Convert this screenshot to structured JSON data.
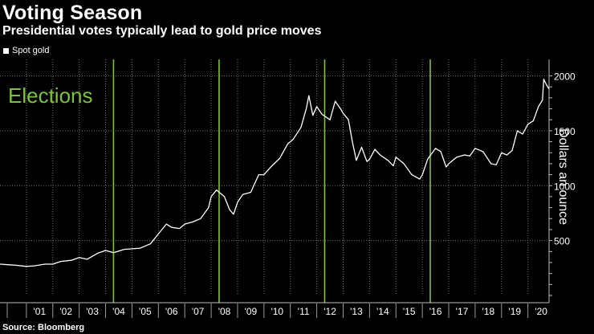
{
  "header": {
    "title": "Voting Season",
    "subtitle": "Presidential votes typically lead to gold price moves"
  },
  "footer": {
    "source": "Source: Bloomberg"
  },
  "colors": {
    "background": "#000000",
    "series": "#ffffff",
    "election": "#7ec242",
    "grid": "#6f6f6f"
  },
  "chart_data": {
    "type": "line",
    "title": "Voting Season",
    "subtitle": "Presidential votes typically lead to gold price moves",
    "ylabel": "Dollars an ounce",
    "ylim": [
      0,
      2150
    ],
    "yticks": [
      500,
      1000,
      1500,
      2000
    ],
    "xlim": [
      2000.0,
      2020.8
    ],
    "xticks": [
      {
        "value": 2001,
        "label": "'01"
      },
      {
        "value": 2002,
        "label": "'02"
      },
      {
        "value": 2003,
        "label": "'03"
      },
      {
        "value": 2004,
        "label": "'04"
      },
      {
        "value": 2005,
        "label": "'05"
      },
      {
        "value": 2006,
        "label": "'06"
      },
      {
        "value": 2007,
        "label": "'07"
      },
      {
        "value": 2008,
        "label": "'08"
      },
      {
        "value": 2009,
        "label": "'09"
      },
      {
        "value": 2010,
        "label": "'10"
      },
      {
        "value": 2011,
        "label": "'11"
      },
      {
        "value": 2012,
        "label": "'12"
      },
      {
        "value": 2013,
        "label": "'13"
      },
      {
        "value": 2014,
        "label": "'14"
      },
      {
        "value": 2015,
        "label": "'15"
      },
      {
        "value": 2016,
        "label": "'16"
      },
      {
        "value": 2017,
        "label": "'17"
      },
      {
        "value": 2018,
        "label": "'18"
      },
      {
        "value": 2019,
        "label": "'19"
      },
      {
        "value": 2020,
        "label": "'20"
      }
    ],
    "annotation": {
      "text": "Elections",
      "election_years": [
        2004.3,
        2008.3,
        2012.3,
        2016.3
      ]
    },
    "series": [
      {
        "name": "Spot gold",
        "points": [
          [
            2000.0,
            285
          ],
          [
            2000.3,
            280
          ],
          [
            2000.6,
            275
          ],
          [
            2001.0,
            265
          ],
          [
            2001.3,
            270
          ],
          [
            2001.7,
            285
          ],
          [
            2002.0,
            285
          ],
          [
            2002.3,
            310
          ],
          [
            2002.7,
            320
          ],
          [
            2003.0,
            345
          ],
          [
            2003.3,
            330
          ],
          [
            2003.7,
            385
          ],
          [
            2004.0,
            410
          ],
          [
            2004.3,
            390
          ],
          [
            2004.7,
            420
          ],
          [
            2005.0,
            425
          ],
          [
            2005.3,
            430
          ],
          [
            2005.7,
            470
          ],
          [
            2006.0,
            560
          ],
          [
            2006.3,
            650
          ],
          [
            2006.5,
            620
          ],
          [
            2006.8,
            610
          ],
          [
            2007.0,
            650
          ],
          [
            2007.3,
            670
          ],
          [
            2007.6,
            700
          ],
          [
            2007.9,
            800
          ],
          [
            2008.0,
            900
          ],
          [
            2008.2,
            960
          ],
          [
            2008.5,
            900
          ],
          [
            2008.7,
            780
          ],
          [
            2008.85,
            740
          ],
          [
            2009.0,
            850
          ],
          [
            2009.2,
            920
          ],
          [
            2009.5,
            940
          ],
          [
            2009.8,
            1100
          ],
          [
            2010.0,
            1100
          ],
          [
            2010.3,
            1180
          ],
          [
            2010.6,
            1250
          ],
          [
            2010.9,
            1380
          ],
          [
            2011.1,
            1420
          ],
          [
            2011.4,
            1530
          ],
          [
            2011.6,
            1700
          ],
          [
            2011.7,
            1820
          ],
          [
            2011.85,
            1640
          ],
          [
            2012.0,
            1720
          ],
          [
            2012.2,
            1650
          ],
          [
            2012.5,
            1600
          ],
          [
            2012.7,
            1770
          ],
          [
            2012.9,
            1700
          ],
          [
            2013.0,
            1660
          ],
          [
            2013.2,
            1600
          ],
          [
            2013.35,
            1400
          ],
          [
            2013.5,
            1230
          ],
          [
            2013.7,
            1350
          ],
          [
            2013.9,
            1220
          ],
          [
            2014.0,
            1240
          ],
          [
            2014.2,
            1330
          ],
          [
            2014.4,
            1280
          ],
          [
            2014.7,
            1230
          ],
          [
            2014.9,
            1180
          ],
          [
            2015.0,
            1260
          ],
          [
            2015.3,
            1200
          ],
          [
            2015.6,
            1100
          ],
          [
            2015.9,
            1060
          ],
          [
            2016.0,
            1100
          ],
          [
            2016.2,
            1240
          ],
          [
            2016.5,
            1340
          ],
          [
            2016.7,
            1310
          ],
          [
            2016.9,
            1170
          ],
          [
            2017.0,
            1200
          ],
          [
            2017.3,
            1260
          ],
          [
            2017.6,
            1280
          ],
          [
            2017.8,
            1270
          ],
          [
            2018.0,
            1340
          ],
          [
            2018.3,
            1310
          ],
          [
            2018.6,
            1200
          ],
          [
            2018.8,
            1190
          ],
          [
            2019.0,
            1300
          ],
          [
            2019.2,
            1280
          ],
          [
            2019.4,
            1320
          ],
          [
            2019.6,
            1500
          ],
          [
            2019.8,
            1470
          ],
          [
            2020.0,
            1560
          ],
          [
            2020.2,
            1590
          ],
          [
            2020.4,
            1720
          ],
          [
            2020.55,
            1780
          ],
          [
            2020.6,
            1970
          ],
          [
            2020.7,
            1920
          ],
          [
            2020.8,
            1880
          ]
        ]
      }
    ]
  }
}
